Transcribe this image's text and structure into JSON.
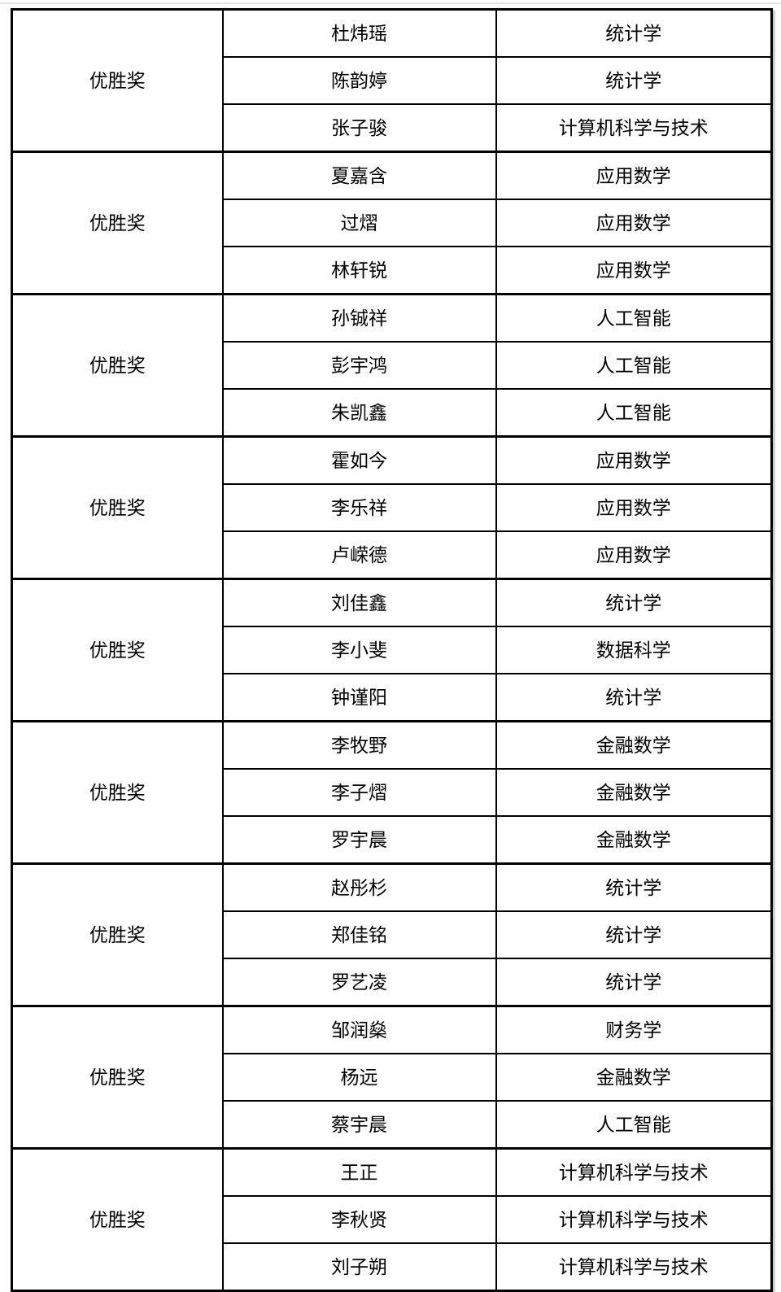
{
  "table": {
    "groups": [
      {
        "award": "优胜奖",
        "members": [
          {
            "name": "杜炜瑶",
            "major": "统计学"
          },
          {
            "name": "陈韵婷",
            "major": "统计学"
          },
          {
            "name": "张子骏",
            "major": "计算机科学与技术"
          }
        ]
      },
      {
        "award": "优胜奖",
        "members": [
          {
            "name": "夏嘉含",
            "major": "应用数学"
          },
          {
            "name": "过熠",
            "major": "应用数学"
          },
          {
            "name": "林轩锐",
            "major": "应用数学"
          }
        ]
      },
      {
        "award": "优胜奖",
        "members": [
          {
            "name": "孙铖祥",
            "major": "人工智能"
          },
          {
            "name": "彭宇鸿",
            "major": "人工智能"
          },
          {
            "name": "朱凯鑫",
            "major": "人工智能"
          }
        ]
      },
      {
        "award": "优胜奖",
        "members": [
          {
            "name": "霍如今",
            "major": "应用数学"
          },
          {
            "name": "李乐祥",
            "major": "应用数学"
          },
          {
            "name": "卢嵘德",
            "major": "应用数学"
          }
        ]
      },
      {
        "award": "优胜奖",
        "members": [
          {
            "name": "刘佳鑫",
            "major": "统计学"
          },
          {
            "name": "李小斐",
            "major": "数据科学"
          },
          {
            "name": "钟谨阳",
            "major": "统计学"
          }
        ]
      },
      {
        "award": "优胜奖",
        "members": [
          {
            "name": "李牧野",
            "major": "金融数学"
          },
          {
            "name": "李子熠",
            "major": "金融数学"
          },
          {
            "name": "罗宇晨",
            "major": "金融数学"
          }
        ]
      },
      {
        "award": "优胜奖",
        "members": [
          {
            "name": "赵彤杉",
            "major": "统计学"
          },
          {
            "name": "郑佳铭",
            "major": "统计学"
          },
          {
            "name": "罗艺凌",
            "major": "统计学"
          }
        ]
      },
      {
        "award": "优胜奖",
        "members": [
          {
            "name": "邹润燊",
            "major": "财务学"
          },
          {
            "name": "杨远",
            "major": "金融数学"
          },
          {
            "name": "蔡宇晨",
            "major": "人工智能"
          }
        ]
      },
      {
        "award": "优胜奖",
        "members": [
          {
            "name": "王正",
            "major": "计算机科学与技术"
          },
          {
            "name": "李秋贤",
            "major": "计算机科学与技术"
          },
          {
            "name": "刘子朔",
            "major": "计算机科学与技术"
          }
        ]
      }
    ]
  }
}
